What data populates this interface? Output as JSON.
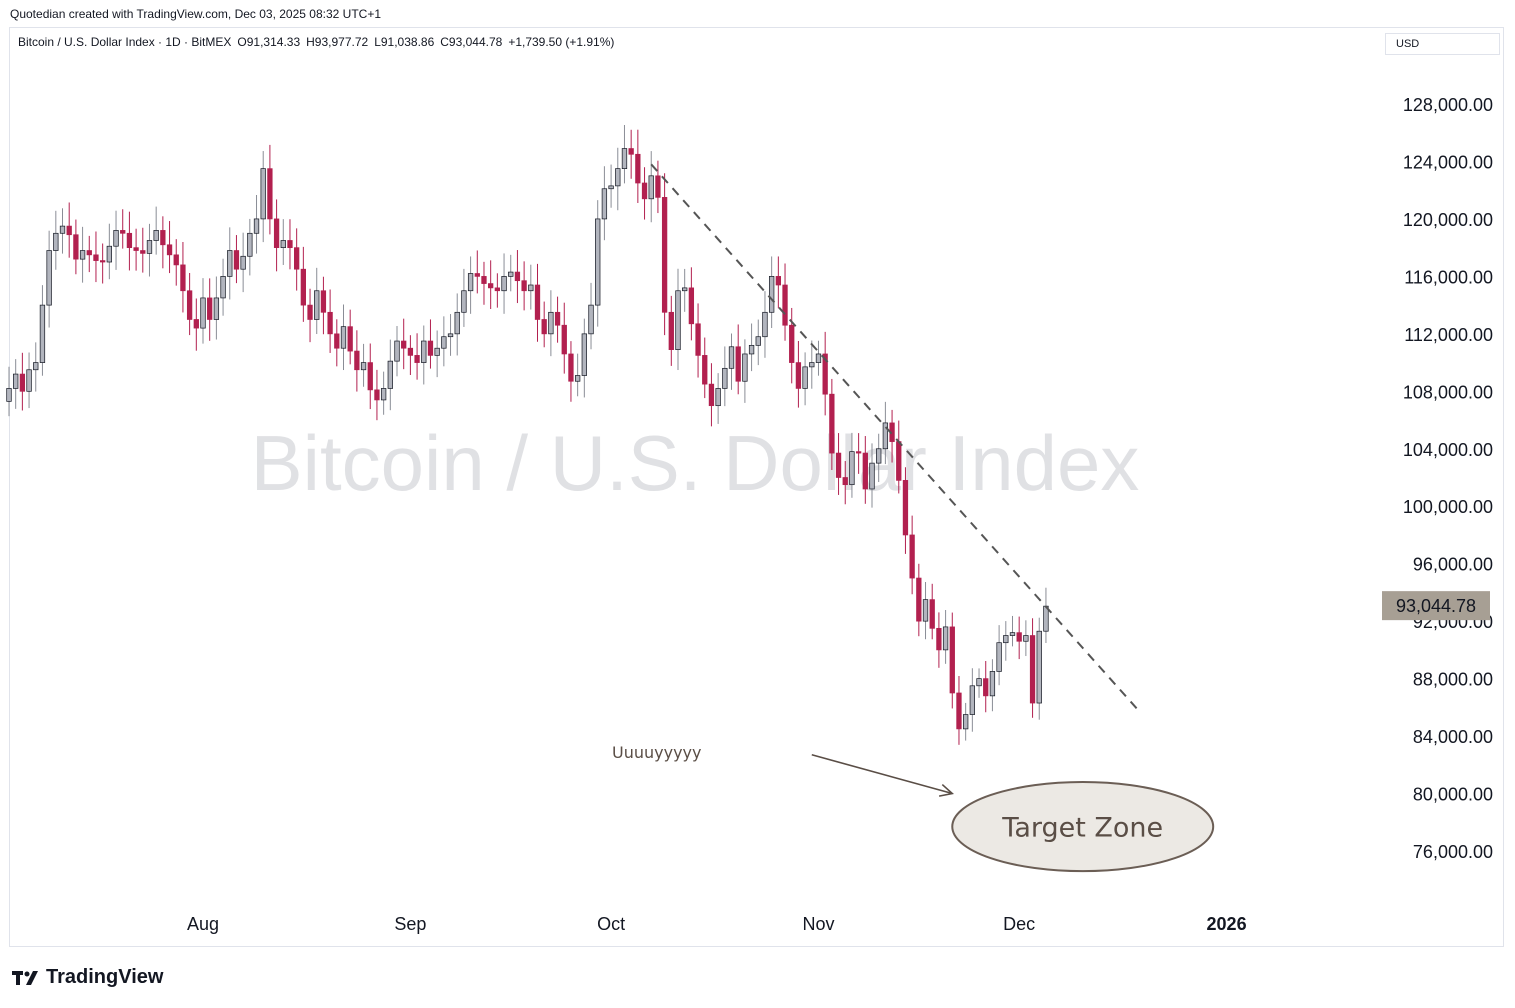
{
  "caption": "Quotedian created with TradingView.com, Dec 03, 2025 08:32 UTC+1",
  "legend": {
    "symbol": "Bitcoin / U.S. Dollar Index · 1D · BitMEX",
    "open": "O91,314.33",
    "high": "H93,977.72",
    "low": "L91,038.86",
    "close": "C93,044.78",
    "change": "+1,739.50 (+1.91%)"
  },
  "currency": "USD",
  "watermark": "Bitcoin / U.S. Dollar Index",
  "brand": "TradingView",
  "annotations": {
    "arrow_text": "Uuuuyyyyy",
    "target_zone": "Target Zone"
  },
  "colors": {
    "bull": "#b2b5be",
    "bear": "#b2204f",
    "last_price_bg": "#a79f94",
    "trendline": "#555555",
    "zone_fill": "#ece9e4",
    "zone_stroke": "#6b5e55"
  },
  "chart_data": {
    "type": "candlestick",
    "last_price": "93,044.78",
    "last_price_value": 93044.78,
    "ylim": [
      72000,
      132000
    ],
    "y_ticks": [
      "76,000.00",
      "80,000.00",
      "84,000.00",
      "88,000.00",
      "92,000.00",
      "96,000.00",
      "100,000.00",
      "104,000.00",
      "108,000.00",
      "112,000.00",
      "116,000.00",
      "120,000.00",
      "124,000.00",
      "128,000.00"
    ],
    "y_tick_values": [
      76000,
      80000,
      84000,
      88000,
      92000,
      96000,
      100000,
      104000,
      108000,
      112000,
      116000,
      120000,
      124000,
      128000
    ],
    "x_ticks": [
      {
        "label": "Aug",
        "date": "2025-08-01"
      },
      {
        "label": "Sep",
        "date": "2025-09-01"
      },
      {
        "label": "Oct",
        "date": "2025-10-01"
      },
      {
        "label": "Nov",
        "date": "2025-11-01"
      },
      {
        "label": "Dec",
        "date": "2025-12-01"
      },
      {
        "label": "2026",
        "date": "2026-01-01"
      }
    ],
    "x_range": [
      "2025-07-02",
      "2026-01-01"
    ],
    "trendline": {
      "from": {
        "date": "2025-10-07",
        "value": 123800
      },
      "to": {
        "date": "2025-12-19",
        "value": 85700
      },
      "style": "dashed"
    },
    "target_zone": {
      "date_from": "2025-11-21",
      "date_to": "2025-12-30",
      "value_from": 74600,
      "value_to": 80800
    },
    "arrow": {
      "from": {
        "date": "2025-10-31",
        "value": 82700
      },
      "to": {
        "date": "2025-11-21",
        "value": 80000
      }
    },
    "closes": [
      107300,
      108200,
      109200,
      108000,
      109500,
      110000,
      114000,
      117800,
      119000,
      119500,
      118900,
      117200,
      117800,
      117500,
      117100,
      117000,
      118100,
      119200,
      119000,
      118000,
      117800,
      117600,
      118500,
      119200,
      118200,
      117500,
      116800,
      115000,
      113000,
      112400,
      114500,
      113000,
      114500,
      116000,
      117800,
      116500,
      117400,
      119000,
      120000,
      123500,
      120000,
      118000,
      118500,
      118000,
      116500,
      114000,
      113000,
      115000,
      113500,
      112000,
      111000,
      112500,
      110800,
      109500,
      110000,
      108100,
      107400,
      108200,
      110100,
      111500,
      111000,
      110500,
      110000,
      111500,
      110500,
      111000,
      111800,
      112000,
      113500,
      115000,
      116200,
      116000,
      115500,
      115200,
      115000,
      116000,
      116300,
      115700,
      115000,
      115400,
      113000,
      112000,
      113500,
      112600,
      110600,
      108700,
      109100,
      112000,
      114000,
      120000,
      122100,
      122300,
      123500,
      124900,
      124500,
      122500,
      121400,
      123000,
      121500,
      113500,
      110900,
      115000,
      115200,
      112700,
      110500,
      108500,
      107000,
      108200,
      109600,
      111100,
      108700,
      110600,
      111200,
      111800,
      113500,
      116000,
      115400,
      112600,
      110000,
      108200,
      109700,
      110000,
      110600,
      107800,
      103700,
      102000,
      101500,
      103800,
      103700,
      101200,
      103000,
      104000,
      105800,
      104500,
      101800,
      98000,
      95000,
      92000,
      93500,
      91500,
      90000,
      91600,
      87000,
      84500,
      85500,
      87500,
      88000,
      86800,
      88500,
      90500,
      91000,
      91200,
      90600,
      91000,
      86300,
      91300,
      93044.78
    ]
  }
}
